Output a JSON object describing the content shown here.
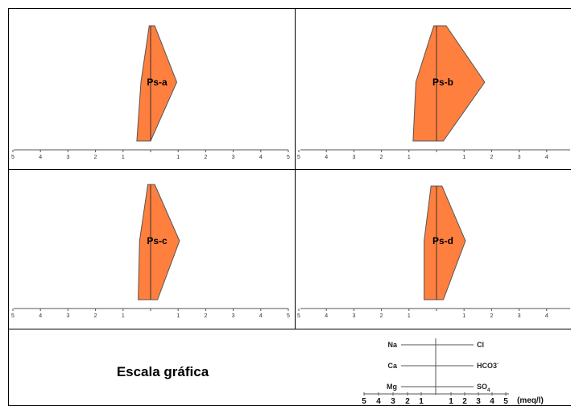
{
  "chart_data": {
    "type": "stiff-diagram",
    "ions_left": [
      "Na",
      "Ca",
      "Mg"
    ],
    "ions_right": [
      "Cl",
      "HCO3",
      "SO4"
    ],
    "axis_ticks": [
      "5",
      "4",
      "3",
      "2",
      "1",
      "",
      "1",
      "2",
      "3",
      "4",
      "5"
    ],
    "xlim": [
      -5,
      5
    ],
    "samples": [
      {
        "name": "Ps-a",
        "left": [
          0.05,
          0.35,
          0.5
        ],
        "right": [
          0.15,
          0.95,
          0.0
        ]
      },
      {
        "name": "Ps-b",
        "left": [
          0.1,
          0.75,
          0.85
        ],
        "right": [
          0.35,
          1.75,
          0.25
        ]
      },
      {
        "name": "Ps-c",
        "left": [
          0.1,
          0.4,
          0.45
        ],
        "right": [
          0.15,
          1.05,
          0.25
        ]
      },
      {
        "name": "Ps-d",
        "left": [
          0.2,
          0.45,
          0.45
        ],
        "right": [
          0.2,
          1.05,
          0.25
        ]
      }
    ]
  },
  "colors": {
    "fill": "#ff7f3f",
    "stroke": "#555555",
    "axis": "#555555",
    "border": "#000000"
  },
  "legend": {
    "title": "Escala gráfica",
    "left_labels": [
      "Na",
      "Ca",
      "Mg"
    ],
    "right_labels": [
      "Cl",
      "HCO3",
      "-",
      "SO",
      "4"
    ],
    "scale_ticks": [
      "5",
      "4",
      "3",
      "2",
      "1",
      "1",
      "2",
      "3",
      "4",
      "5"
    ],
    "unit": "(meq/l)"
  }
}
